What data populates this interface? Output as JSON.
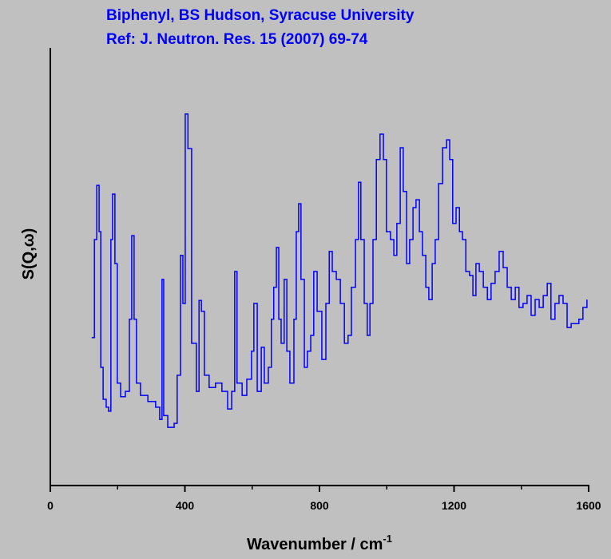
{
  "chart_data": {
    "type": "line",
    "step": true,
    "title": [
      "Biphenyl, BS Hudson, Syracuse University",
      "Ref: J. Neutron. Res. 15 (2007) 69-74"
    ],
    "x_label": "Wavenumber / cm",
    "x_label_sup": "-1",
    "y_label": "S(Q,ω)",
    "color": "#0000ff",
    "xlim": [
      0,
      1600
    ],
    "xticks": [
      0,
      400,
      800,
      1200,
      1600
    ],
    "xminor_ticks": [
      200,
      600,
      1000,
      1400
    ],
    "ylim": [
      0,
      100
    ],
    "x": [
      123,
      131,
      138,
      145,
      150,
      157,
      166,
      173,
      180,
      185,
      192,
      199,
      209,
      223,
      235,
      242,
      249,
      256,
      268,
      290,
      313,
      325,
      332,
      337,
      349,
      368,
      377,
      387,
      394,
      401,
      409,
      420,
      434,
      442,
      449,
      458,
      472,
      491,
      510,
      527,
      539,
      548,
      555,
      570,
      584,
      598,
      605,
      615,
      627,
      636,
      648,
      657,
      664,
      672,
      679,
      686,
      695,
      703,
      712,
      724,
      731,
      738,
      745,
      755,
      764,
      774,
      783,
      793,
      807,
      819,
      829,
      838,
      850,
      862,
      874,
      885,
      895,
      907,
      916,
      923,
      933,
      942,
      950,
      959,
      969,
      980,
      990,
      999,
      1011,
      1021,
      1030,
      1040,
      1049,
      1059,
      1068,
      1078,
      1087,
      1097,
      1106,
      1116,
      1125,
      1135,
      1144,
      1154,
      1166,
      1178,
      1187,
      1196,
      1206,
      1216,
      1225,
      1235,
      1246,
      1256,
      1265,
      1275,
      1287,
      1299,
      1310,
      1322,
      1334,
      1346,
      1358,
      1370,
      1382,
      1393,
      1405,
      1417,
      1429,
      1441,
      1453,
      1465,
      1477,
      1488,
      1500,
      1512,
      1524,
      1536,
      1548,
      1560,
      1571,
      1583,
      1595
    ],
    "values": [
      33.8,
      56.2,
      68.6,
      58,
      27,
      19.7,
      17.9,
      17,
      56.2,
      66.6,
      50.7,
      23.4,
      20.3,
      21.5,
      38,
      57.1,
      38,
      23.4,
      20.6,
      19.2,
      17.9,
      15.1,
      47.1,
      16,
      13.3,
      14.2,
      25.2,
      52.6,
      41.6,
      84.9,
      77,
      32.5,
      21.5,
      42.3,
      39.8,
      25.2,
      22.4,
      23.4,
      21.5,
      17.5,
      21.5,
      48.9,
      23.4,
      20.6,
      24.3,
      30.7,
      41.6,
      21.5,
      31.6,
      23.4,
      27,
      38,
      45.3,
      54.4,
      38,
      32.5,
      47.1,
      30.7,
      23.4,
      38,
      58,
      64.4,
      47.1,
      27,
      30.7,
      34.3,
      48.9,
      39.8,
      28.8,
      41.6,
      53.5,
      48.9,
      47.1,
      41.6,
      32.5,
      34.3,
      45.3,
      56.2,
      69.3,
      56.2,
      41.6,
      34.3,
      41.6,
      56.2,
      74.5,
      80.3,
      74.5,
      58,
      56.2,
      52.6,
      59.9,
      77.2,
      67.2,
      50.7,
      56.2,
      63.5,
      65.3,
      58,
      52.6,
      45.3,
      42.5,
      50.7,
      56.2,
      69,
      77.2,
      79,
      74.5,
      59.9,
      63.5,
      58,
      56.2,
      48.9,
      48,
      43.4,
      50.7,
      48.9,
      45.3,
      42.5,
      46.2,
      48.9,
      53.5,
      49.8,
      45.3,
      42.5,
      45.3,
      40.7,
      41.6,
      43.4,
      38.9,
      42.5,
      40.7,
      43.4,
      46.2,
      38,
      41.6,
      43.4,
      41.6,
      36.1,
      37,
      37,
      38,
      40.7,
      42.5
    ]
  }
}
